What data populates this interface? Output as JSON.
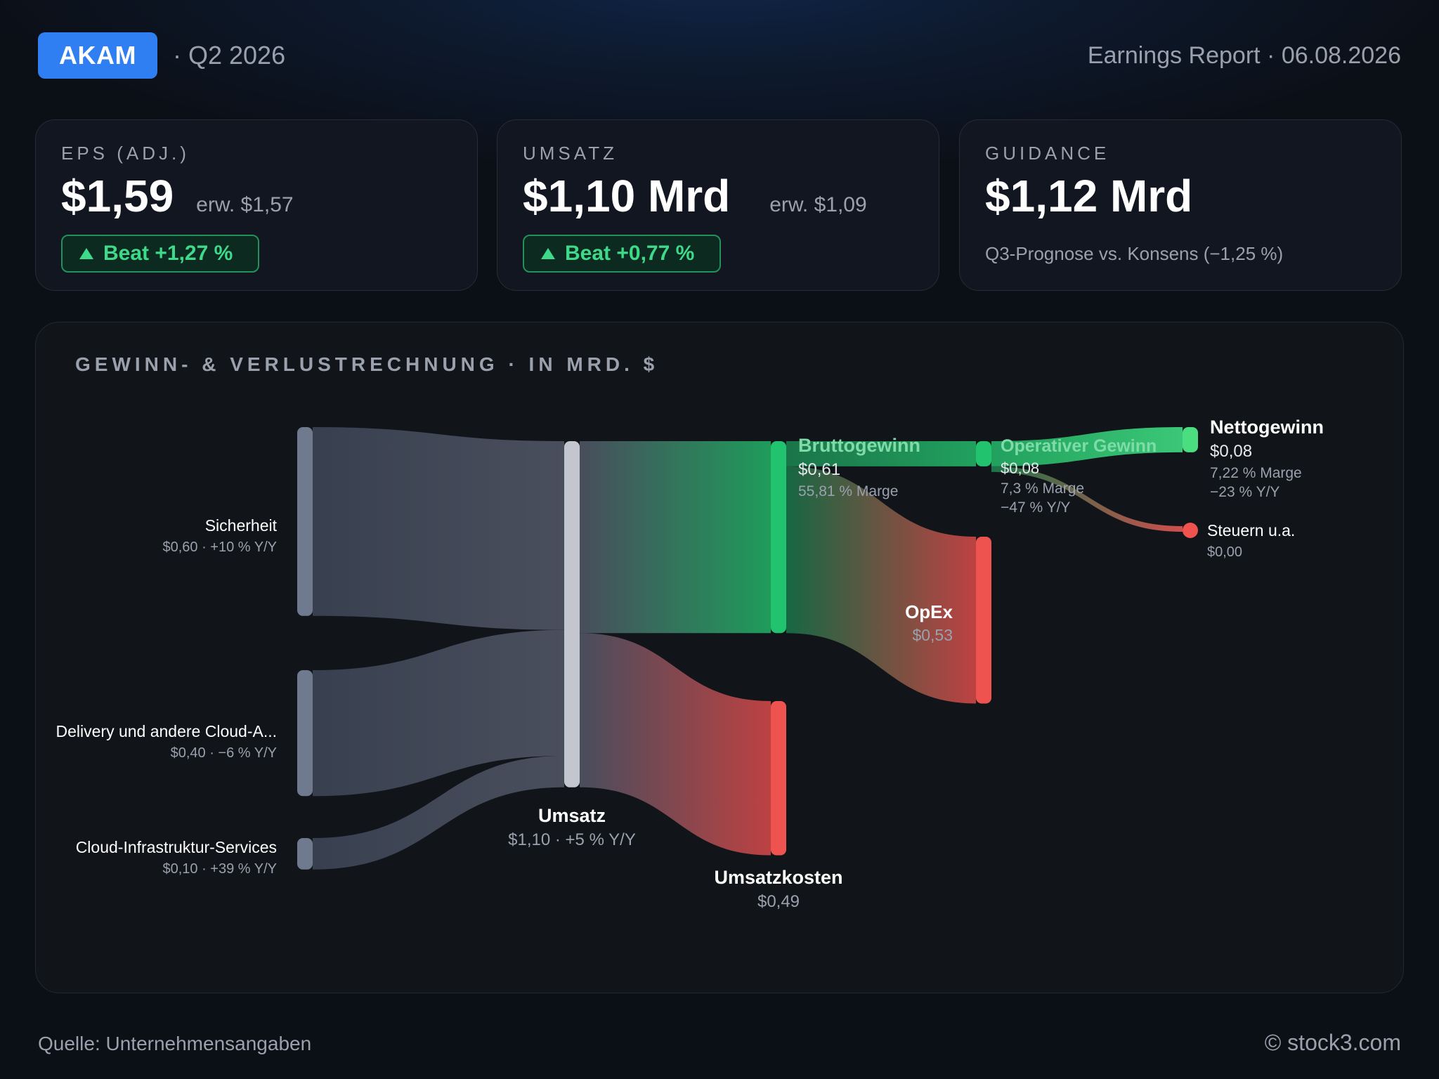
{
  "header": {
    "ticker": "AKAM",
    "quarter": "· Q2 2026",
    "report": "Earnings Report · 06.08.2026"
  },
  "kpis": {
    "eps": {
      "label": "EPS (ADJ.)",
      "value": "$1,59",
      "expected": "erw. $1,57",
      "beat": "Beat +1,27 %"
    },
    "revenue": {
      "label": "UMSATZ",
      "value": "$1,10 Mrd",
      "expected": "erw. $1,09",
      "beat": "Beat +0,77 %"
    },
    "guidance": {
      "label": "GUIDANCE",
      "value": "$1,12 Mrd",
      "note": "Q3-Prognose vs. Konsens (−1,25 %)"
    }
  },
  "panel": {
    "title": "GEWINN- & VERLUSTRECHNUNG · IN MRD. $"
  },
  "chart_data": {
    "type": "sankey",
    "unit": "Mrd. $",
    "nodes": [
      {
        "id": "sicherheit",
        "label": "Sicherheit",
        "value": 0.6,
        "sub": "$0,60 · +10 % Y/Y"
      },
      {
        "id": "delivery",
        "label": "Delivery und andere Cloud-A...",
        "value": 0.4,
        "sub": "$0,40 · −6 % Y/Y"
      },
      {
        "id": "cloudinfra",
        "label": "Cloud-Infrastruktur-Services",
        "value": 0.1,
        "sub": "$0,10 · +39 % Y/Y"
      },
      {
        "id": "umsatz",
        "label": "Umsatz",
        "value": 1.1,
        "sub": "$1,10 · +5 % Y/Y"
      },
      {
        "id": "brutto",
        "label": "Bruttogewinn",
        "value": 0.61,
        "sub": "$0,61",
        "sub2": "55,81 % Marge"
      },
      {
        "id": "kosten",
        "label": "Umsatzkosten",
        "value": 0.49,
        "sub": "$0,49"
      },
      {
        "id": "operativ",
        "label": "Operativer Gewinn",
        "value": 0.08,
        "sub": "$0,08",
        "sub2": "7,3 % Marge",
        "sub3": "−47 % Y/Y"
      },
      {
        "id": "opex",
        "label": "OpEx",
        "value": 0.53,
        "sub": "$0,53"
      },
      {
        "id": "netto",
        "label": "Nettogewinn",
        "value": 0.08,
        "sub": "$0,08",
        "sub2": "7,22 % Marge",
        "sub3": "−23 % Y/Y"
      },
      {
        "id": "steuern",
        "label": "Steuern u.a.",
        "value": 0.0,
        "sub": "$0,00"
      }
    ],
    "links": [
      {
        "source": "sicherheit",
        "target": "umsatz",
        "value": 0.6
      },
      {
        "source": "delivery",
        "target": "umsatz",
        "value": 0.4
      },
      {
        "source": "cloudinfra",
        "target": "umsatz",
        "value": 0.1
      },
      {
        "source": "umsatz",
        "target": "brutto",
        "value": 0.61
      },
      {
        "source": "umsatz",
        "target": "kosten",
        "value": 0.49
      },
      {
        "source": "brutto",
        "target": "operativ",
        "value": 0.08
      },
      {
        "source": "brutto",
        "target": "opex",
        "value": 0.53
      },
      {
        "source": "operativ",
        "target": "netto",
        "value": 0.08
      },
      {
        "source": "operativ",
        "target": "steuern",
        "value": 0.0
      }
    ],
    "colors": {
      "segment": "#6f7a8e",
      "revenue": "#c3c6cf",
      "profit": "#22c36e",
      "net": "#4ade80",
      "cost": "#ef5350",
      "text": "#ffffff",
      "muted": "#9aa1ad"
    }
  },
  "footer": {
    "source": "Quelle: Unternehmensangaben",
    "brand": "© stock3.com"
  }
}
